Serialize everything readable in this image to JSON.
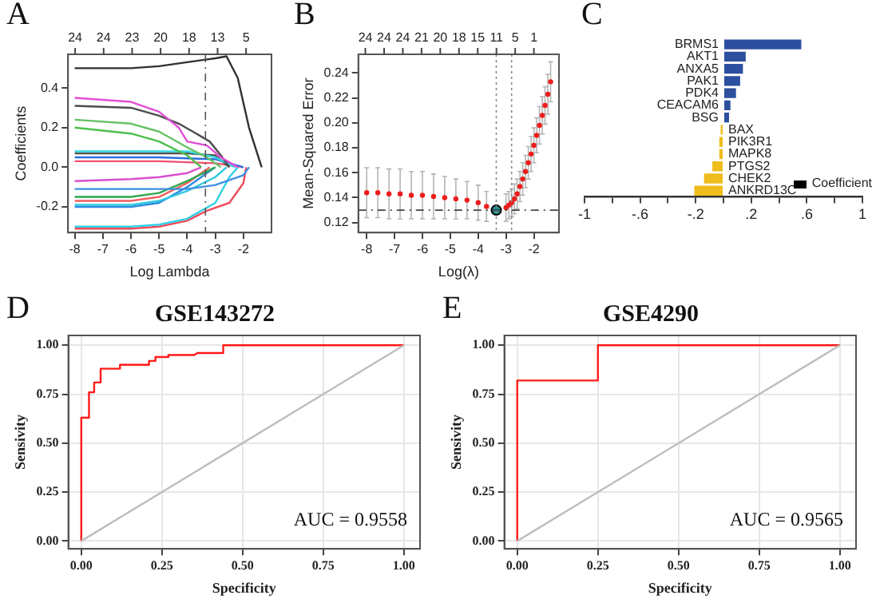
{
  "chart_data": [
    {
      "type": "line",
      "xlabel": "Log Lambda",
      "ylabel": "Coefficients",
      "annotations": [
        "A",
        "24",
        "24",
        "23",
        "20",
        "18",
        "13",
        "5"
      ],
      "xlim": [
        -8.24,
        -1.0
      ],
      "xticks": [
        -8,
        -7,
        -6,
        -5,
        -4,
        -3,
        -2
      ],
      "ylim": [
        -0.33,
        0.57
      ],
      "yticks": [
        {
          "value": -0.2,
          "label": "-0.2"
        },
        {
          "value": 0,
          "label": "0.0"
        },
        {
          "value": 0.2,
          "label": "0.2"
        },
        {
          "value": 0.4,
          "label": "0.4"
        }
      ],
      "grid": false,
      "legend": false,
      "marker": "none",
      "line_style": "solid",
      "ref_lines": [
        {
          "axis": "x",
          "value": -3.35,
          "line_style": "dashed",
          "color": "#555555"
        }
      ],
      "series": [
        {
          "color": "#303030",
          "x": [
            -8,
            -6,
            -5,
            -4,
            -3,
            -2.6,
            -2.2,
            -1.8,
            -1.35
          ],
          "values": [
            0.5,
            0.5,
            0.51,
            0.53,
            0.55,
            0.56,
            0.45,
            0.2,
            0
          ]
        },
        {
          "color": "#e34fd6",
          "x": [
            -8,
            -6,
            -5,
            -4.3,
            -4,
            -3.3,
            -2.8,
            -2.2
          ],
          "values": [
            0.35,
            0.33,
            0.28,
            0.2,
            0.13,
            0.11,
            0.05,
            0
          ]
        },
        {
          "color": "#4c4c4c",
          "x": [
            -8,
            -6,
            -5,
            -4.3,
            -3.8,
            -3.2,
            -2.8,
            -2.5
          ],
          "values": [
            0.31,
            0.3,
            0.26,
            0.22,
            0.18,
            0.13,
            0.06,
            0
          ]
        },
        {
          "color": "#66c266",
          "x": [
            -8,
            -6,
            -5,
            -4,
            -3.3,
            -2.8
          ],
          "values": [
            0.24,
            0.22,
            0.18,
            0.1,
            0.05,
            0
          ]
        },
        {
          "color": "#4cbf4c",
          "x": [
            -8,
            -6,
            -5,
            -4,
            -3.5
          ],
          "values": [
            0.2,
            0.17,
            0.13,
            0.06,
            0
          ]
        },
        {
          "color": "#33d6e0",
          "x": [
            -8,
            -4,
            -3,
            -2.3
          ],
          "values": [
            0.08,
            0.08,
            0.05,
            0
          ]
        },
        {
          "color": "#555555",
          "x": [
            -8,
            -4,
            -3,
            -2.5
          ],
          "values": [
            0.07,
            0.07,
            0.06,
            0
          ]
        },
        {
          "color": "#2b6fe0",
          "x": [
            -8,
            -5,
            -3,
            -2
          ],
          "values": [
            0.05,
            0.05,
            0.04,
            0
          ]
        },
        {
          "color": "#f0506e",
          "x": [
            -8,
            -5,
            -3,
            -2
          ],
          "values": [
            0.03,
            0.03,
            0.02,
            0
          ]
        },
        {
          "color": "#d94fcf",
          "x": [
            -8,
            -6,
            -5,
            -4,
            -3.5
          ],
          "values": [
            -0.07,
            -0.06,
            -0.05,
            -0.03,
            0
          ]
        },
        {
          "color": "#3d8fe0",
          "x": [
            -8,
            -4,
            -3,
            -2,
            -1.8
          ],
          "values": [
            -0.11,
            -0.11,
            -0.09,
            -0.04,
            0
          ]
        },
        {
          "color": "#2fa84f",
          "x": [
            -8,
            -6,
            -5,
            -4,
            -3
          ],
          "values": [
            -0.15,
            -0.15,
            -0.13,
            -0.07,
            0
          ]
        },
        {
          "color": "#f06060",
          "x": [
            -8,
            -6,
            -5,
            -4,
            -3.2
          ],
          "values": [
            -0.17,
            -0.17,
            -0.15,
            -0.08,
            0
          ]
        },
        {
          "color": "#30c8e0",
          "x": [
            -8,
            -6,
            -5,
            -4,
            -3,
            -2.6
          ],
          "values": [
            -0.19,
            -0.19,
            -0.17,
            -0.12,
            -0.05,
            0
          ]
        },
        {
          "color": "#2b8ae0",
          "x": [
            -8,
            -6,
            -5,
            -4,
            -3
          ],
          "values": [
            -0.2,
            -0.2,
            -0.18,
            -0.1,
            0
          ]
        },
        {
          "color": "#30d0e6",
          "x": [
            -8,
            -6,
            -5,
            -4,
            -3,
            -2.5,
            -2.2
          ],
          "values": [
            -0.3,
            -0.3,
            -0.29,
            -0.26,
            -0.18,
            -0.05,
            0
          ]
        },
        {
          "color": "#f04b5a",
          "x": [
            -8,
            -6,
            -5,
            -4,
            -3.3,
            -2.5,
            -2,
            -1.9
          ],
          "values": [
            -0.31,
            -0.31,
            -0.3,
            -0.27,
            -0.22,
            -0.18,
            -0.08,
            0
          ]
        }
      ]
    },
    {
      "type": "scatter",
      "xlabel": "Log(λ)",
      "ylabel": "Mean-Squared Error",
      "annotations": [
        "B",
        "24",
        "24",
        "24",
        "21",
        "20",
        "18",
        "15",
        "11",
        "5",
        "1"
      ],
      "xlim": [
        -8.3,
        -1.1
      ],
      "xticks": [
        -8,
        -7,
        -6,
        -5,
        -4,
        -3,
        -2
      ],
      "ylim": [
        0.112,
        0.255
      ],
      "yticks": [
        0.12,
        0.14,
        0.16,
        0.18,
        {
          "value": 0.2,
          "label": "0.20"
        },
        0.22,
        0.24
      ],
      "grid": false,
      "legend": false,
      "marker": "circle",
      "ref_lines": [
        {
          "axis": "x",
          "value": -3.35,
          "line_style": "dotted",
          "color": "#888888"
        },
        {
          "axis": "x",
          "value": -2.8,
          "line_style": "dotted",
          "color": "#888888"
        },
        {
          "axis": "y",
          "value": 0.13,
          "line_style": "dashed",
          "color": "#444444"
        }
      ],
      "series": [
        {
          "color": "#ee1c1c",
          "x": [
            -8,
            -7.6,
            -7.2,
            -6.8,
            -6.4,
            -6,
            -5.6,
            -5.2,
            -4.8,
            -4.4,
            -4,
            -3.7,
            -3,
            -2.9,
            -2.8,
            -2.7,
            -2.6,
            -2.5,
            -2.4,
            -2.3,
            -2.2,
            -2.1,
            -2,
            -1.9,
            -1.8,
            -1.7,
            -1.6,
            -1.5,
            -1.4
          ],
          "values": [
            0.144,
            0.144,
            0.143,
            0.143,
            0.142,
            0.142,
            0.141,
            0.14,
            0.139,
            0.138,
            0.136,
            0.133,
            0.132,
            0.134,
            0.136,
            0.139,
            0.143,
            0.149,
            0.155,
            0.161,
            0.168,
            0.175,
            0.182,
            0.19,
            0.198,
            0.206,
            0.214,
            0.223,
            0.233
          ],
          "errors": [
            0.02,
            0.02,
            0.02,
            0.02,
            0.019,
            0.019,
            0.018,
            0.017,
            0.016,
            0.015,
            0.014,
            0.012,
            0.011,
            0.011,
            0.011,
            0.012,
            0.012,
            0.012,
            0.013,
            0.013,
            0.013,
            0.014,
            0.014,
            0.014,
            0.015,
            0.015,
            0.015,
            0.016,
            0.016
          ]
        },
        {
          "type": "scatter",
          "color": "#1f8a8a",
          "x": [
            -3.35
          ],
          "values": [
            0.13
          ]
        }
      ]
    },
    {
      "type": "bar",
      "orientation": "horizontal",
      "annotations": [
        "C"
      ],
      "categories": [
        "BRMS1",
        "AKT1",
        "ANXA5",
        "PAK1",
        "PDK4",
        "CEACAM6",
        "BSG",
        "BAX",
        "PIK3R1",
        "MAPK8",
        "PTGS2",
        "CHEK2",
        "ANKRD13C"
      ],
      "xlim": [
        -1,
        1
      ],
      "xticks": [
        {
          "value": -1,
          "label": "-1"
        },
        {
          "value": -0.8,
          "label": null
        },
        {
          "value": -0.6,
          "label": "-.6"
        },
        {
          "value": -0.4,
          "label": null
        },
        {
          "value": -0.2,
          "label": "-.2"
        },
        {
          "value": 0,
          "label": null
        },
        {
          "value": 0.2,
          "label": ".2"
        },
        {
          "value": 0.4,
          "label": null
        },
        {
          "value": 0.6,
          "label": ".6"
        },
        {
          "value": 0.8,
          "label": null
        },
        {
          "value": 1,
          "label": "1"
        }
      ],
      "grid": false,
      "legend": "bottom right",
      "series": [
        {
          "name": "Coefficient",
          "color": "#000000",
          "values": [
            0.56,
            0.16,
            0.14,
            0.12,
            0.09,
            0.05,
            0.04,
            -0.02,
            -0.03,
            -0.03,
            -0.08,
            -0.14,
            -0.21
          ],
          "colors": [
            "#2c4f9e",
            "#2c4f9e",
            "#2c4f9e",
            "#2c4f9e",
            "#2c4f9e",
            "#2c4f9e",
            "#2c4f9e",
            "#efbd1c",
            "#efbd1c",
            "#efbd1c",
            "#efbd1c",
            "#efbd1c",
            "#efbd1c"
          ]
        }
      ]
    },
    {
      "type": "line",
      "title": "GSE143272",
      "xlabel": "Specificity",
      "ylabel": "Sensivity",
      "annotations": [
        "D",
        "AUC = 0.9558"
      ],
      "xlim": [
        -0.04,
        1.05
      ],
      "xticks": [
        {
          "value": 0,
          "label": "0.00"
        },
        0.25,
        {
          "value": 0.5,
          "label": "0.50"
        },
        0.75,
        {
          "value": 1,
          "label": "1.00"
        }
      ],
      "ylim": [
        -0.04,
        1.05
      ],
      "yticks": [
        {
          "value": 0,
          "label": "0.00"
        },
        0.25,
        {
          "value": 0.5,
          "label": "0.50"
        },
        0.75,
        {
          "value": 1,
          "label": "1.00"
        }
      ],
      "grid": true,
      "legend": false,
      "marker": "none",
      "series": [
        {
          "color": "#bebebe",
          "x": [
            0,
            1
          ],
          "values": [
            0,
            1
          ]
        },
        {
          "color": "#ff1a1a",
          "x": [
            0,
            0,
            0.024,
            0.024,
            0.04,
            0.04,
            0.06,
            0.06,
            0.12,
            0.12,
            0.21,
            0.21,
            0.23,
            0.23,
            0.27,
            0.27,
            0.35,
            0.36,
            0.44,
            0.44,
            1
          ],
          "values": [
            0,
            0.63,
            0.63,
            0.76,
            0.76,
            0.81,
            0.81,
            0.88,
            0.88,
            0.9,
            0.9,
            0.92,
            0.92,
            0.94,
            0.94,
            0.95,
            0.95,
            0.96,
            0.96,
            1,
            1
          ]
        }
      ]
    },
    {
      "type": "line",
      "title": "GSE4290",
      "xlabel": "Specificity",
      "ylabel": "Sensivity",
      "annotations": [
        "E",
        "AUC = 0.9565"
      ],
      "xlim": [
        -0.04,
        1.05
      ],
      "xticks": [
        {
          "value": 0,
          "label": "0.00"
        },
        0.25,
        {
          "value": 0.5,
          "label": "0.50"
        },
        0.75,
        {
          "value": 1,
          "label": "1.00"
        }
      ],
      "ylim": [
        -0.04,
        1.05
      ],
      "yticks": [
        {
          "value": 0,
          "label": "0.00"
        },
        0.25,
        {
          "value": 0.5,
          "label": "0.50"
        },
        0.75,
        {
          "value": 1,
          "label": "1.00"
        }
      ],
      "grid": true,
      "legend": false,
      "marker": "none",
      "series": [
        {
          "color": "#bebebe",
          "x": [
            0,
            1
          ],
          "values": [
            0,
            1
          ]
        },
        {
          "color": "#ff1a1a",
          "x": [
            0,
            0,
            0.25,
            0.25,
            1
          ],
          "values": [
            0,
            0.82,
            0.82,
            1,
            1
          ]
        }
      ]
    }
  ]
}
